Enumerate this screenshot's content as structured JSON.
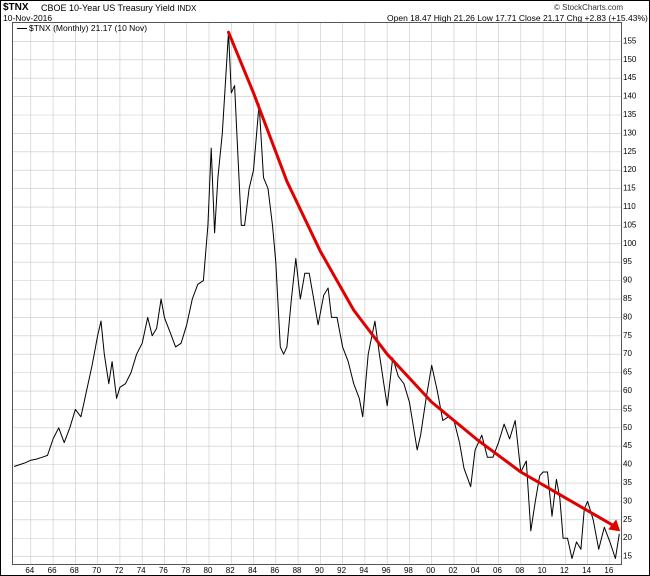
{
  "header": {
    "symbol": "$TNX",
    "description": "CBOE 10-Year US Treasury Yield",
    "exchange": "INDX",
    "date": "10-Nov-2016",
    "ohlc": "Open 18.47  High 21.26  Low 17.71  Close 21.17  Chg +2.83 (+15.43%)",
    "credit": "© StockCharts.com",
    "legend": "$TNX (Monthly) 21.17 (10 Nov)"
  },
  "chart_data": {
    "type": "line",
    "title": "",
    "xlabel": "",
    "ylabel": "",
    "x_ticks": [
      "64",
      "66",
      "68",
      "70",
      "72",
      "74",
      "76",
      "78",
      "80",
      "82",
      "84",
      "86",
      "88",
      "90",
      "92",
      "94",
      "96",
      "98",
      "00",
      "02",
      "04",
      "06",
      "08",
      "10",
      "12",
      "14",
      "16"
    ],
    "y_ticks": [
      15,
      20,
      25,
      30,
      35,
      40,
      45,
      50,
      55,
      60,
      65,
      70,
      75,
      80,
      85,
      90,
      95,
      100,
      105,
      110,
      115,
      120,
      125,
      130,
      135,
      140,
      145,
      150,
      155
    ],
    "xlim": [
      1962.4,
      2017.0
    ],
    "ylim": [
      13.0,
      160.0
    ],
    "grid": true,
    "y_axis_side": "right",
    "colors": {
      "price": "#000000",
      "trendline": "#e00000",
      "grid": "#c8c8c8"
    },
    "series": [
      {
        "values": [
          [
            1962.5,
            39.5
          ],
          [
            1963.0,
            40.0
          ],
          [
            1963.5,
            40.5
          ],
          [
            1964.0,
            41.2
          ],
          [
            1964.5,
            41.5
          ],
          [
            1965.0,
            42.0
          ],
          [
            1965.5,
            42.5
          ],
          [
            1966.0,
            47.0
          ],
          [
            1966.5,
            50.0
          ],
          [
            1967.0,
            46.0
          ],
          [
            1967.5,
            50.0
          ],
          [
            1968.0,
            55.0
          ],
          [
            1968.5,
            53.0
          ],
          [
            1969.0,
            60.0
          ],
          [
            1969.5,
            67.0
          ],
          [
            1970.0,
            75.0
          ],
          [
            1970.3,
            79.0
          ],
          [
            1970.6,
            70.0
          ],
          [
            1971.0,
            62.0
          ],
          [
            1971.3,
            68.0
          ],
          [
            1971.7,
            58.0
          ],
          [
            1972.0,
            61.0
          ],
          [
            1972.5,
            62.0
          ],
          [
            1973.0,
            65.0
          ],
          [
            1973.5,
            70.0
          ],
          [
            1974.0,
            73.0
          ],
          [
            1974.5,
            80.0
          ],
          [
            1974.9,
            75.0
          ],
          [
            1975.3,
            77.0
          ],
          [
            1975.7,
            85.0
          ],
          [
            1976.0,
            80.0
          ],
          [
            1976.5,
            76.0
          ],
          [
            1977.0,
            72.0
          ],
          [
            1977.5,
            73.0
          ],
          [
            1978.0,
            78.0
          ],
          [
            1978.5,
            85.0
          ],
          [
            1979.0,
            89.0
          ],
          [
            1979.5,
            90.0
          ],
          [
            1979.9,
            105.0
          ],
          [
            1980.2,
            126.0
          ],
          [
            1980.5,
            103.0
          ],
          [
            1980.8,
            118.0
          ],
          [
            1981.2,
            130.0
          ],
          [
            1981.5,
            145.0
          ],
          [
            1981.75,
            157.5
          ],
          [
            1982.0,
            141.0
          ],
          [
            1982.3,
            143.0
          ],
          [
            1982.6,
            124.0
          ],
          [
            1982.9,
            105.0
          ],
          [
            1983.2,
            105.0
          ],
          [
            1983.6,
            115.0
          ],
          [
            1984.0,
            120.0
          ],
          [
            1984.5,
            138.0
          ],
          [
            1984.9,
            118.0
          ],
          [
            1985.3,
            115.0
          ],
          [
            1985.7,
            105.0
          ],
          [
            1986.0,
            95.0
          ],
          [
            1986.4,
            72.0
          ],
          [
            1986.7,
            70.0
          ],
          [
            1987.0,
            72.0
          ],
          [
            1987.4,
            85.0
          ],
          [
            1987.8,
            96.0
          ],
          [
            1988.2,
            85.0
          ],
          [
            1988.6,
            92.0
          ],
          [
            1989.0,
            92.0
          ],
          [
            1989.4,
            85.0
          ],
          [
            1989.8,
            78.0
          ],
          [
            1990.3,
            86.0
          ],
          [
            1990.7,
            88.0
          ],
          [
            1991.0,
            80.0
          ],
          [
            1991.5,
            80.0
          ],
          [
            1992.0,
            72.0
          ],
          [
            1992.5,
            68.0
          ],
          [
            1993.0,
            62.0
          ],
          [
            1993.5,
            58.0
          ],
          [
            1993.8,
            53.0
          ],
          [
            1994.3,
            70.0
          ],
          [
            1994.9,
            79.0
          ],
          [
            1995.3,
            70.0
          ],
          [
            1995.7,
            62.0
          ],
          [
            1996.0,
            56.0
          ],
          [
            1996.5,
            69.0
          ],
          [
            1997.0,
            64.0
          ],
          [
            1997.5,
            62.0
          ],
          [
            1998.0,
            57.0
          ],
          [
            1998.7,
            44.0
          ],
          [
            1999.0,
            48.0
          ],
          [
            1999.5,
            58.0
          ],
          [
            2000.0,
            67.0
          ],
          [
            2000.5,
            60.0
          ],
          [
            2001.0,
            52.0
          ],
          [
            2001.5,
            53.0
          ],
          [
            2002.0,
            52.0
          ],
          [
            2002.5,
            46.0
          ],
          [
            2002.9,
            39.0
          ],
          [
            2003.5,
            34.0
          ],
          [
            2003.9,
            44.0
          ],
          [
            2004.5,
            48.0
          ],
          [
            2005.0,
            42.0
          ],
          [
            2005.5,
            42.0
          ],
          [
            2006.0,
            46.0
          ],
          [
            2006.5,
            51.0
          ],
          [
            2007.0,
            47.0
          ],
          [
            2007.5,
            52.0
          ],
          [
            2008.0,
            38.0
          ],
          [
            2008.5,
            41.0
          ],
          [
            2008.9,
            22.0
          ],
          [
            2009.3,
            30.0
          ],
          [
            2009.7,
            37.0
          ],
          [
            2010.0,
            38.0
          ],
          [
            2010.4,
            38.0
          ],
          [
            2010.8,
            26.0
          ],
          [
            2011.2,
            36.0
          ],
          [
            2011.5,
            31.0
          ],
          [
            2011.8,
            20.0
          ],
          [
            2012.2,
            20.0
          ],
          [
            2012.6,
            14.5
          ],
          [
            2013.0,
            19.0
          ],
          [
            2013.4,
            17.0
          ],
          [
            2013.7,
            28.0
          ],
          [
            2014.0,
            30.0
          ],
          [
            2014.5,
            25.0
          ],
          [
            2015.0,
            17.0
          ],
          [
            2015.5,
            23.0
          ],
          [
            2016.0,
            19.0
          ],
          [
            2016.5,
            14.5
          ],
          [
            2016.85,
            21.2
          ]
        ]
      }
    ]
  }
}
